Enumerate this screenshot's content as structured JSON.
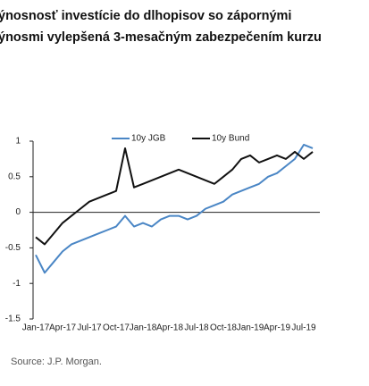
{
  "chart_data": {
    "type": "line",
    "title_lines": [
      "ýnosnosť investície do dlhopisov so zápornými",
      "ýnosmi vylepšená 3-mesačným zabezpečením kurzu"
    ],
    "source": "Source: J.P. Morgan.",
    "categories": [
      "Jan-17",
      null,
      null,
      "Apr-17",
      null,
      null,
      "Jul-17",
      null,
      null,
      "Oct-17",
      null,
      null,
      "Jan-18",
      null,
      null,
      "Apr-18",
      null,
      null,
      "Jul-18",
      null,
      null,
      "Oct-18",
      null,
      null,
      "Jan-19",
      null,
      null,
      "Apr-19",
      null,
      null,
      "Jul-19",
      null
    ],
    "series": [
      {
        "name": "10y JGB",
        "color": "#4a86c5",
        "values": [
          -0.6,
          -0.85,
          -0.7,
          -0.55,
          -0.45,
          -0.4,
          -0.35,
          -0.3,
          -0.25,
          -0.2,
          -0.05,
          -0.2,
          -0.15,
          -0.2,
          -0.1,
          -0.05,
          -0.05,
          -0.1,
          -0.05,
          0.05,
          0.1,
          0.15,
          0.25,
          0.3,
          0.35,
          0.4,
          0.5,
          0.55,
          0.65,
          0.75,
          0.95,
          0.9
        ]
      },
      {
        "name": "10y Bund",
        "color": "#111111",
        "values": [
          -0.35,
          -0.45,
          -0.3,
          -0.15,
          -0.05,
          0.05,
          0.15,
          0.2,
          0.25,
          0.3,
          0.9,
          0.35,
          0.4,
          0.45,
          0.5,
          0.55,
          0.6,
          0.55,
          0.5,
          0.45,
          0.4,
          0.5,
          0.6,
          0.75,
          0.8,
          0.7,
          0.75,
          0.8,
          0.75,
          0.85,
          0.75,
          0.85
        ]
      }
    ],
    "ylim": [
      -1.5,
      1
    ],
    "yticks": [
      -1.5,
      -1,
      -0.5,
      0,
      0.5,
      1
    ]
  }
}
